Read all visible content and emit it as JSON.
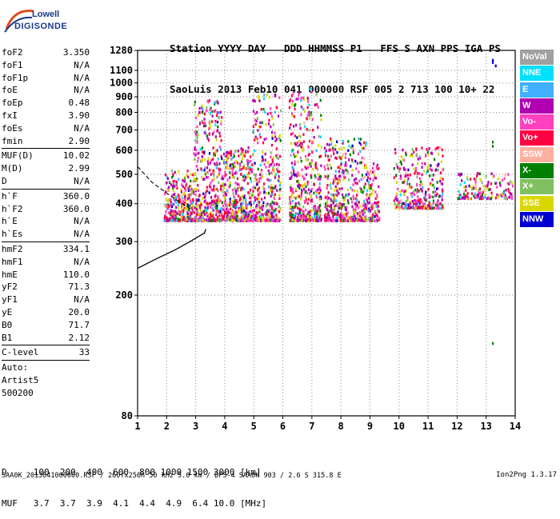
{
  "logo": {
    "top": "Lowell",
    "main": "DIGISONDE"
  },
  "header": {
    "line1": "Station YYYY DAY   DDD HHMMSS P1   FFS S AXN PPS IGA PS",
    "line2": "SaoLuis 2013 Feb10 041 000000 RSF 005 2 713 100 10+ 22"
  },
  "params": [
    {
      "k": "foF2",
      "v": "3.350"
    },
    {
      "k": "foF1",
      "v": "N/A"
    },
    {
      "k": "foF1p",
      "v": "N/A"
    },
    {
      "k": "foE",
      "v": "N/A"
    },
    {
      "k": "foEp",
      "v": "0.48"
    },
    {
      "k": "fxI",
      "v": "3.90"
    },
    {
      "k": "foEs",
      "v": "N/A"
    },
    {
      "k": "fmin",
      "v": "2.90"
    },
    {
      "k": "MUF(D)",
      "v": "10.02"
    },
    {
      "k": "M(D)",
      "v": "2.99"
    },
    {
      "k": "D",
      "v": "N/A"
    },
    {
      "k": "h`F",
      "v": "360.0"
    },
    {
      "k": "h`F2",
      "v": "360.0"
    },
    {
      "k": "h`E",
      "v": "N/A"
    },
    {
      "k": "h`Es",
      "v": "N/A"
    },
    {
      "k": "hmF2",
      "v": "334.1"
    },
    {
      "k": "hmF1",
      "v": "N/A"
    },
    {
      "k": "hmE",
      "v": "110.0"
    },
    {
      "k": "yF2",
      "v": "71.3"
    },
    {
      "k": "yF1",
      "v": "N/A"
    },
    {
      "k": "yE",
      "v": "20.0"
    },
    {
      "k": "B0",
      "v": "71.7"
    },
    {
      "k": "B1",
      "v": "2.12"
    },
    {
      "k": "C-level",
      "v": "33"
    },
    {
      "k": "Auto:",
      "v": ""
    },
    {
      "k": "Artist5",
      "v": ""
    },
    {
      "k": "500200",
      "v": ""
    }
  ],
  "footer": {
    "line1": "D     100  200  400  600  800 1000 1500 3000 [km]",
    "line2": "MUF   3.7  3.7  3.9  4.1  4.4  4.9  6.4 10.0 [MHz]",
    "line3": "SAA0K_2013041000000.RSF / 260fx256h 50 kHz 5.0 km / DPS-4 SAA0K 903 / 2.6 S 315.8 E",
    "version": "Ion2Png 1.3.17"
  },
  "legend": [
    {
      "label": "NoVal",
      "color": "#a0a0a0"
    },
    {
      "label": "NNE",
      "color": "#00e0ff"
    },
    {
      "label": "E",
      "color": "#40b0ff"
    },
    {
      "label": "W",
      "color": "#b000b0"
    },
    {
      "label": "Vo-",
      "color": "#ff40c0"
    },
    {
      "label": "Vo+",
      "color": "#ff0040"
    },
    {
      "label": "SSW",
      "color": "#ffb0a0"
    },
    {
      "label": "X-",
      "color": "#008000"
    },
    {
      "label": "X+",
      "color": "#80c060"
    },
    {
      "label": "SSE",
      "color": "#d8d800"
    },
    {
      "label": "NNW",
      "color": "#0000d0"
    }
  ],
  "chart_data": {
    "type": "scatter",
    "title": "",
    "xlabel": "",
    "ylabel": "",
    "xlim": [
      1,
      14
    ],
    "ylim": [
      80,
      1280
    ],
    "y_scale": "log",
    "x_ticks": [
      1,
      2,
      3,
      4,
      5,
      6,
      7,
      8,
      9,
      10,
      11,
      12,
      13,
      14
    ],
    "y_ticks": [
      80,
      200,
      300,
      400,
      500,
      600,
      700,
      800,
      900,
      1000,
      1100,
      1280
    ],
    "grid": true,
    "profile_curve": {
      "x": [
        1,
        1.6,
        2.3,
        2.8,
        3.1,
        3.3,
        3.35
      ],
      "y": [
        245,
        262,
        282,
        300,
        312,
        320,
        330
      ]
    },
    "profile_dashed": {
      "x": [
        1,
        1.5,
        2.2,
        2.9
      ],
      "y": [
        530,
        470,
        420,
        380
      ]
    },
    "clusters": [
      {
        "x0": 1.9,
        "x1": 2.9,
        "y0": 355,
        "y1": 520,
        "n": 320
      },
      {
        "x0": 2.9,
        "x1": 3.9,
        "y0": 355,
        "y1": 900,
        "n": 420
      },
      {
        "x0": 3.9,
        "x1": 4.9,
        "y0": 355,
        "y1": 620,
        "n": 380
      },
      {
        "x0": 4.9,
        "x1": 5.9,
        "y0": 355,
        "y1": 930,
        "n": 360
      },
      {
        "x0": 6.2,
        "x1": 7.3,
        "y0": 355,
        "y1": 975,
        "n": 420
      },
      {
        "x0": 7.4,
        "x1": 8.9,
        "y0": 355,
        "y1": 670,
        "n": 460
      },
      {
        "x0": 8.9,
        "x1": 9.3,
        "y0": 355,
        "y1": 560,
        "n": 90
      },
      {
        "x0": 9.8,
        "x1": 11.5,
        "y0": 390,
        "y1": 620,
        "n": 300
      },
      {
        "x0": 12.0,
        "x1": 13.9,
        "y0": 420,
        "y1": 510,
        "n": 160
      }
    ],
    "isolated_points": [
      {
        "x": 13.2,
        "y": 1200
      },
      {
        "x": 13.2,
        "y": 1180
      },
      {
        "x": 13.3,
        "y": 1150
      },
      {
        "x": 13.2,
        "y": 645
      },
      {
        "x": 13.2,
        "y": 625
      },
      {
        "x": 13.2,
        "y": 140
      }
    ]
  }
}
